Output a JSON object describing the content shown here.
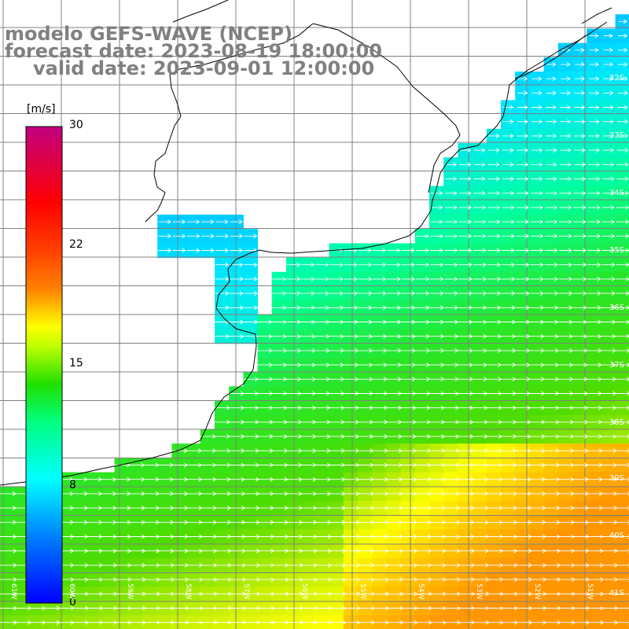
{
  "title": {
    "line1": "modelo GEFS-WAVE (NCEP)",
    "line2": "forecast date: 2023-08-19 18:00:00",
    "line3": "valid date: 2023-09-01 12:00:00"
  },
  "colorbar": {
    "unit": "[m/s]",
    "ticks": [
      "30",
      "22",
      "15",
      "8",
      "0"
    ],
    "values": [
      30,
      22,
      15,
      8,
      0
    ],
    "range": [
      0,
      30
    ],
    "colors": [
      "#0000ff",
      "#00c0ff",
      "#00ffff",
      "#00ff40",
      "#40ff00",
      "#ffff00",
      "#ff8000",
      "#ff0000",
      "#ff0080",
      "#c00080"
    ]
  },
  "lat_labels": [
    "32S",
    "33S",
    "34S",
    "35S",
    "36S",
    "37S",
    "38S",
    "39S",
    "40S",
    "41S"
  ],
  "lon_labels": [
    "61W",
    "60W",
    "59W",
    "58W",
    "57W",
    "56W",
    "55W",
    "54W",
    "53W",
    "52W",
    "51W"
  ],
  "colors": {
    "land": "#ffffff",
    "grid": "#808080",
    "coast": "#000000",
    "arrows": "#ffffff",
    "title": "#808080"
  }
}
